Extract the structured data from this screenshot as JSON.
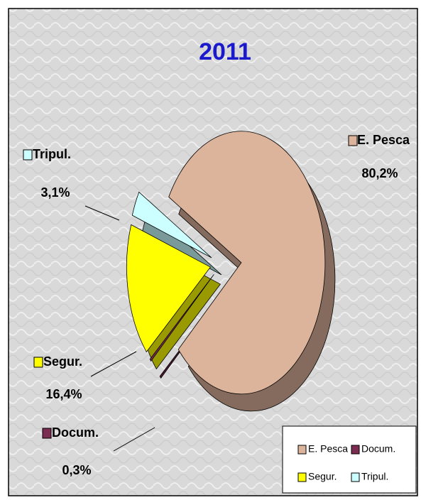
{
  "chart_data": {
    "type": "pie",
    "title": "2011",
    "categories": [
      "E. Pesca",
      "Docum.",
      "Segur.",
      "Tripul."
    ],
    "values": [
      80.2,
      0.3,
      16.4,
      3.1
    ],
    "value_labels": [
      "80,2%",
      "0,3%",
      "16,4%",
      "3,1%"
    ],
    "colors": [
      "#dcb39b",
      "#7b2c50",
      "#ffff00",
      "#ccffff"
    ],
    "legend": "bottom-right"
  }
}
